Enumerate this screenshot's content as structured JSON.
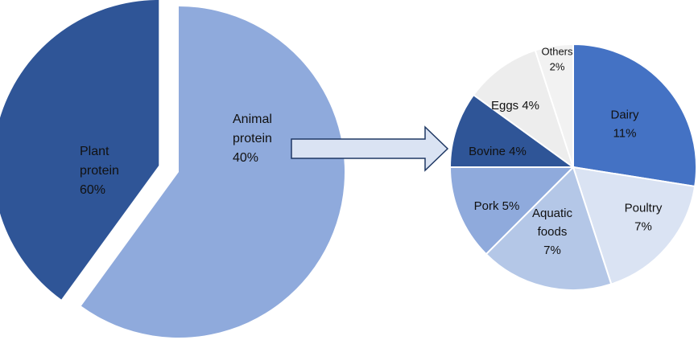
{
  "chart_data": [
    {
      "type": "pie",
      "slices": [
        {
          "label_lines": [
            "Plant",
            "protein",
            "60%"
          ],
          "value": 60,
          "color": "#8faadc",
          "exploded": false
        },
        {
          "label_lines": [
            "Animal",
            "protein",
            "40%"
          ],
          "value": 40,
          "color": "#2f5597",
          "exploded": true
        }
      ]
    },
    {
      "type": "pie",
      "slices": [
        {
          "label_lines": [
            "Dairy",
            "11%"
          ],
          "value": 11,
          "color": "#4472c4"
        },
        {
          "label_lines": [
            "Poultry",
            "7%"
          ],
          "value": 7,
          "color": "#dae3f3"
        },
        {
          "label_lines": [
            "Aquatic",
            "foods",
            "7%"
          ],
          "value": 7,
          "color": "#b4c7e7"
        },
        {
          "label_lines": [
            "Pork 5%"
          ],
          "value": 5,
          "color": "#8faadc"
        },
        {
          "label_lines": [
            "Bovine 4%"
          ],
          "value": 4,
          "color": "#2f5597"
        },
        {
          "label_lines": [
            "Eggs 4%"
          ],
          "value": 4,
          "color": "#ededed"
        },
        {
          "label_lines": [
            "Others",
            "2%"
          ],
          "value": 2,
          "color": "#f2f2f2"
        }
      ]
    }
  ],
  "connector": {
    "style": "arrow-right",
    "fill": "#dae3f3",
    "stroke": "#1f3864"
  }
}
